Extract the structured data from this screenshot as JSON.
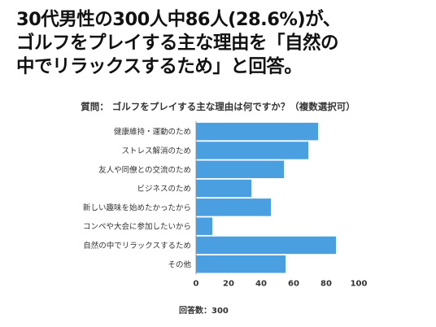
{
  "headline": {
    "lines": [
      "30代男性の300人中86人(28.6%)が、",
      "ゴルフをプレイする主な理由を「自然の",
      "中でリラックスするため」と回答。"
    ]
  },
  "chart_data": {
    "type": "bar",
    "orientation": "horizontal",
    "title": "質問： ゴルフをプレイする主な理由は何ですか？（複数選択可）",
    "categories": [
      "健康維持・運動のため",
      "ストレス解消のため",
      "友人や同僚との交流のため",
      "ビジネスのため",
      "新しい趣味を始めたかったから",
      "コンペや大会に参加したいから",
      "自然の中でリラックスするため",
      "その他"
    ],
    "values": [
      75,
      69,
      54,
      34,
      46,
      10,
      86,
      55
    ],
    "xlim": [
      0,
      100
    ],
    "xticks": [
      0,
      20,
      40,
      60,
      80,
      100
    ],
    "grid": false,
    "bar_color": "#4a9fe0",
    "footnote": "回答数：300"
  }
}
